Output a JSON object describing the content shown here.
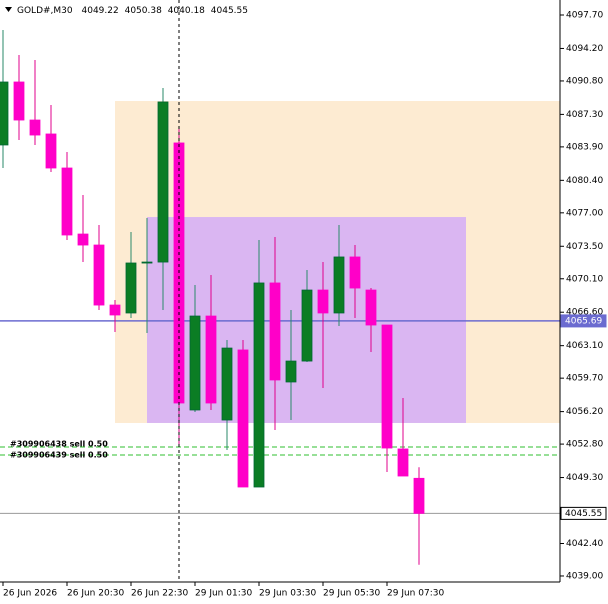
{
  "chart_data": {
    "type": "candlestick",
    "title": "GOLD#,M30",
    "categories": [
      "26 Jun 2026",
      null,
      null,
      null,
      "26 Jun 20:30",
      null,
      null,
      null,
      "26 Jun 22:30",
      null,
      null,
      null,
      "29 Jun 01:30",
      null,
      null,
      null,
      "29 Jun 03:30",
      null,
      null,
      null,
      "29 Jun 05:30",
      null,
      null,
      null,
      "29 Jun 07:30",
      null,
      null
    ],
    "open": [
      4084.1,
      4090.69,
      4086.71,
      4085.25,
      4081.69,
      4074.78,
      4073.63,
      4067.35,
      4066.52,
      4071.75,
      4071.85,
      4084.31,
      4056.37,
      4066.2,
      4055.32,
      4062.65,
      4048.31,
      4069.66,
      4059.3,
      4061.49,
      4068.92,
      4066.52,
      4072.38,
      4068.92,
      4065.26,
      4052.29,
      4049.22
    ],
    "high": [
      4096.13,
      4093.51,
      4092.99,
      4088.28,
      4083.36,
      4078.86,
      4075.73,
      4067.88,
      4074.99,
      4076.46,
      4090.06,
      4085.88,
      4069.45,
      4070.49,
      4063.69,
      4063.69,
      4074.16,
      4074.47,
      4066.83,
      4071.02,
      4071.85,
      4075.73,
      4073.63,
      4069.13,
      4065.26,
      4057.62,
      4050.38
    ],
    "low": [
      4081.69,
      4084.62,
      4084.1,
      4081.27,
      4074.16,
      4071.85,
      4066.83,
      4064.53,
      4065.99,
      4064.42,
      4066.83,
      4052.71,
      4056.16,
      4056.37,
      4052.18,
      4048.31,
      4048.31,
      4054.27,
      4055.32,
      4061.39,
      4058.67,
      4065.16,
      4065.99,
      4062.44,
      4049.88,
      4049.46,
      4040.18
    ],
    "close": [
      4090.69,
      4086.71,
      4085.14,
      4081.69,
      4074.68,
      4073.63,
      4067.35,
      4066.31,
      4071.75,
      4071.85,
      4088.6,
      4057.1,
      4066.2,
      4057.1,
      4062.85,
      4048.31,
      4069.66,
      4059.51,
      4061.49,
      4068.92,
      4066.52,
      4072.38,
      4069.13,
      4065.26,
      4052.39,
      4049.46,
      4045.55
    ],
    "up_color": "#0b7d24",
    "down_color": "#ff00c8",
    "ylim": [
      4038.37,
      4099.27
    ],
    "yticks": [
      {
        "value": 4097.7,
        "label": "4097.70"
      },
      {
        "value": 4094.2,
        "label": "4094.20"
      },
      {
        "value": 4090.8,
        "label": "4090.80"
      },
      {
        "value": 4087.3,
        "label": "4087.30"
      },
      {
        "value": 4083.9,
        "label": "4083.90"
      },
      {
        "value": 4080.4,
        "label": "4080.40"
      },
      {
        "value": 4077.0,
        "label": "4077.00"
      },
      {
        "value": 4073.5,
        "label": "4073.50"
      },
      {
        "value": 4070.1,
        "label": "4070.10"
      },
      {
        "value": 4066.6,
        "label": "4066.60"
      },
      {
        "value": 4063.1,
        "label": "4063.10"
      },
      {
        "value": 4059.7,
        "label": "4059.70"
      },
      {
        "value": 4056.2,
        "label": "4056.20"
      },
      {
        "value": 4052.8,
        "label": "4052.80"
      },
      {
        "value": 4049.3,
        "label": "4049.30"
      },
      {
        "value": 4042.4,
        "label": "4042.40"
      },
      {
        "value": 4039.0,
        "label": "4039.00"
      }
    ],
    "zones": [
      {
        "range": [
          4055.01,
          4088.7
        ],
        "color": "#fdebd2"
      },
      {
        "range": [
          4055.01,
          4076.56
        ],
        "color": "#dab6f2"
      }
    ],
    "price_lines": [
      {
        "value": 4065.69,
        "color": "#6b6bd0"
      },
      {
        "value": 4045.55,
        "color": "#9a9a9a"
      }
    ],
    "orders": [
      {
        "value": 4052.49,
        "label": "#309906438 sell 0.50",
        "color": "#2fbf2f"
      },
      {
        "value": 4051.66,
        "label": "#309906439 sell 0.50",
        "color": "#2fbf2f"
      }
    ]
  }
}
